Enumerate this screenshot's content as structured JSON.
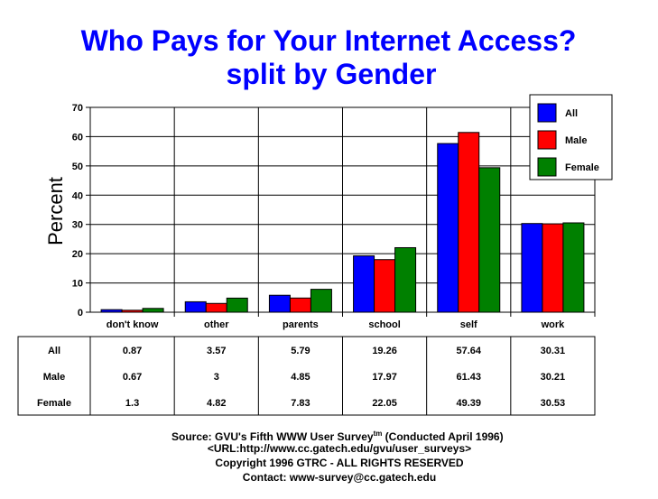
{
  "chart_data": {
    "type": "bar",
    "title": "Who Pays for Your Internet Access?",
    "subtitle": "split by Gender",
    "xlabel": "",
    "ylabel": "Percent",
    "ylim": [
      0,
      70
    ],
    "yticks": [
      0,
      10,
      20,
      30,
      40,
      50,
      60,
      70
    ],
    "categories": [
      "don't know",
      "other",
      "parents",
      "school",
      "self",
      "work"
    ],
    "series": [
      {
        "name": "All",
        "color": "#0000ff",
        "values": [
          0.87,
          3.57,
          5.79,
          19.26,
          57.64,
          30.31
        ]
      },
      {
        "name": "Male",
        "color": "#ff0000",
        "values": [
          0.67,
          3,
          4.85,
          17.97,
          61.43,
          30.21
        ]
      },
      {
        "name": "Female",
        "color": "#008000",
        "values": [
          1.3,
          4.82,
          7.83,
          22.05,
          49.39,
          30.53
        ]
      }
    ],
    "table_rows": [
      {
        "label": "All",
        "values": [
          "0.87",
          "3.57",
          "5.79",
          "19.26",
          "57.64",
          "30.31"
        ]
      },
      {
        "label": "Male",
        "values": [
          "0.67",
          "3",
          "4.85",
          "17.97",
          "61.43",
          "30.21"
        ]
      },
      {
        "label": "Female",
        "values": [
          "1.3",
          "4.82",
          "7.83",
          "22.05",
          "49.39",
          "30.53"
        ]
      }
    ],
    "grid": true,
    "legend_position": "top-right"
  },
  "footer": {
    "source_prefix": "Source: GVU's Fifth WWW User Survey",
    "source_superscript": "tm",
    "source_suffix": " (Conducted April 1996)",
    "url": "<URL:http://www.cc.gatech.edu/gvu/user_surveys>",
    "copyright": "Copyright 1996 GTRC -  ALL RIGHTS RESERVED",
    "contact": "Contact: www-survey@cc.gatech.edu"
  }
}
